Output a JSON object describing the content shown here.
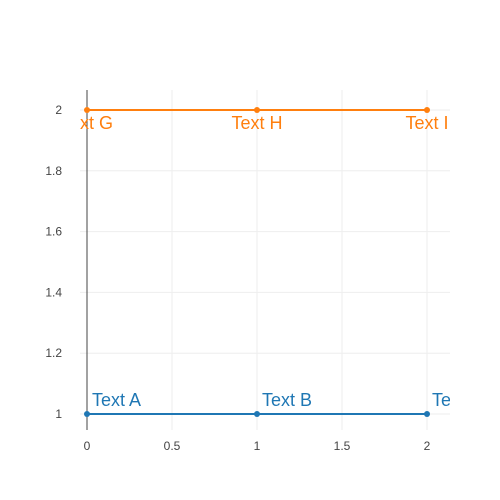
{
  "chart_data": {
    "type": "line",
    "x_ticks": [
      "0",
      "0.5",
      "1",
      "1.5",
      "2"
    ],
    "y_ticks": [
      "1",
      "1.2",
      "1.4",
      "1.6",
      "1.8",
      "2"
    ],
    "xlim": [
      0,
      2.13
    ],
    "ylim": [
      0.94,
      2.07
    ],
    "grid": true,
    "series": [
      {
        "color": "#1f77b4",
        "x": [
          0,
          1,
          2
        ],
        "y": [
          1,
          1,
          1
        ],
        "labels": [
          "Text A",
          "Text B",
          "Text C"
        ],
        "label_position": "top-right"
      },
      {
        "color": "#ff7f0e",
        "x": [
          0,
          1,
          2
        ],
        "y": [
          2,
          2,
          2
        ],
        "labels": [
          "Text G",
          "Text H",
          "Text I"
        ],
        "label_position": "bottom-center"
      }
    ]
  }
}
